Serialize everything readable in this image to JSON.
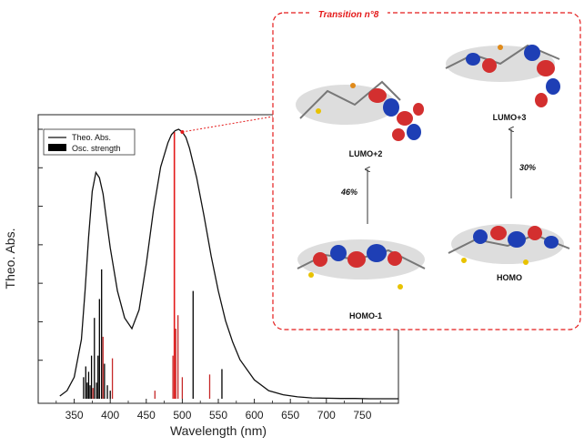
{
  "chart_data": {
    "type": "line",
    "xlabel": "Wavelength (nm)",
    "ylabel": "Theo. Abs.",
    "xlim": [
      300,
      800
    ],
    "xticks": [
      350,
      400,
      450,
      500,
      550,
      600,
      650,
      700,
      750
    ],
    "ylim": [
      0,
      1.0
    ],
    "y_ticks_labeled": false,
    "legend": {
      "placement": "top-left",
      "entries": [
        {
          "label": "Theo. Abs.",
          "style": "line",
          "color": "#111111"
        },
        {
          "label": "Osc. strength",
          "style": "bar",
          "color": "#000000"
        }
      ]
    },
    "series": [
      {
        "name": "Theo. Abs.",
        "type": "line",
        "color": "#111111",
        "x": [
          330,
          340,
          350,
          360,
          365,
          370,
          375,
          380,
          385,
          390,
          395,
          400,
          410,
          420,
          430,
          440,
          450,
          460,
          470,
          480,
          485,
          490,
          495,
          500,
          505,
          510,
          520,
          530,
          540,
          550,
          560,
          570,
          580,
          600,
          620,
          640,
          660,
          680,
          700,
          720,
          740,
          760,
          780,
          800
        ],
        "y": [
          0.01,
          0.03,
          0.08,
          0.22,
          0.4,
          0.6,
          0.77,
          0.84,
          0.82,
          0.76,
          0.66,
          0.56,
          0.4,
          0.3,
          0.26,
          0.33,
          0.5,
          0.7,
          0.86,
          0.95,
          0.98,
          0.995,
          1.0,
          0.99,
          0.97,
          0.93,
          0.82,
          0.68,
          0.53,
          0.4,
          0.29,
          0.21,
          0.145,
          0.07,
          0.03,
          0.015,
          0.007,
          0.003,
          0.002,
          0.001,
          0.001,
          0.0,
          0.0,
          0.0
        ]
      },
      {
        "name": "Osc. strength",
        "type": "stick",
        "sticks": [
          {
            "x": 363,
            "y": 0.08,
            "color": "#000000"
          },
          {
            "x": 366,
            "y": 0.12,
            "color": "#000000"
          },
          {
            "x": 368,
            "y": 0.06,
            "color": "#000000"
          },
          {
            "x": 370,
            "y": 0.1,
            "color": "#000000"
          },
          {
            "x": 372,
            "y": 0.05,
            "color": "#000000"
          },
          {
            "x": 374,
            "y": 0.16,
            "color": "#000000"
          },
          {
            "x": 376,
            "y": 0.04,
            "color": "#c62828"
          },
          {
            "x": 378,
            "y": 0.3,
            "color": "#000000"
          },
          {
            "x": 381,
            "y": 0.06,
            "color": "#000000"
          },
          {
            "x": 383,
            "y": 0.16,
            "color": "#000000"
          },
          {
            "x": 385,
            "y": 0.37,
            "color": "#000000"
          },
          {
            "x": 388,
            "y": 0.48,
            "color": "#000000"
          },
          {
            "x": 390,
            "y": 0.23,
            "color": "#c62828"
          },
          {
            "x": 392,
            "y": 0.13,
            "color": "#000000"
          },
          {
            "x": 396,
            "y": 0.05,
            "color": "#000000"
          },
          {
            "x": 400,
            "y": 0.03,
            "color": "#000000"
          },
          {
            "x": 403,
            "y": 0.15,
            "color": "#c62828"
          },
          {
            "x": 462,
            "y": 0.03,
            "color": "#c62828"
          },
          {
            "x": 487,
            "y": 0.16,
            "color": "#c62828"
          },
          {
            "x": 489,
            "y": 0.99,
            "color": "#e41a1a"
          },
          {
            "x": 491,
            "y": 0.26,
            "color": "#c62828"
          },
          {
            "x": 494,
            "y": 0.31,
            "color": "#c62828"
          },
          {
            "x": 500,
            "y": 0.08,
            "color": "#c62828"
          },
          {
            "x": 515,
            "y": 0.4,
            "color": "#000000"
          },
          {
            "x": 538,
            "y": 0.09,
            "color": "#c62828"
          },
          {
            "x": 555,
            "y": 0.11,
            "color": "#000000"
          }
        ]
      }
    ],
    "annotation": {
      "target_x": 500,
      "target_y": 0.99,
      "callout": "Transition n°8"
    }
  },
  "inset": {
    "title": "Transition n°8",
    "border_color": "#e41a1a",
    "orbitals": [
      {
        "key": "lumo2",
        "label": "LUMO+2"
      },
      {
        "key": "lumo3",
        "label": "LUMO+3"
      },
      {
        "key": "homo1",
        "label": "HOMO-1"
      },
      {
        "key": "homo",
        "label": "HOMO"
      }
    ],
    "contributions": [
      {
        "from": "HOMO-1",
        "to": "LUMO+2",
        "percent": "46%"
      },
      {
        "from": "HOMO",
        "to": "LUMO+3",
        "percent": "30%"
      }
    ]
  }
}
